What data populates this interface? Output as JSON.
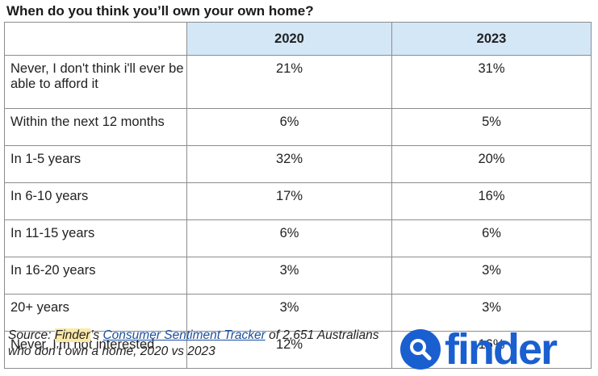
{
  "title": "When do you think you’ll own your own home?",
  "chart_data": {
    "type": "table",
    "title": "When do you think you’ll own your own home?",
    "columns": [
      "",
      "2020",
      "2023"
    ],
    "rows": [
      {
        "label": "Never, I don't think i'll ever be able to afford it",
        "values": [
          "21%",
          "31%"
        ]
      },
      {
        "label": "Within the next 12 months",
        "values": [
          "6%",
          "5%"
        ]
      },
      {
        "label": "In 1-5 years",
        "values": [
          "32%",
          "20%"
        ]
      },
      {
        "label": "In 6-10 years",
        "values": [
          "17%",
          "16%"
        ]
      },
      {
        "label": "In 11-15 years",
        "values": [
          "6%",
          "6%"
        ]
      },
      {
        "label": "In 16-20 years",
        "values": [
          "3%",
          "3%"
        ]
      },
      {
        "label": "20+ years",
        "values": [
          "3%",
          "3%"
        ]
      },
      {
        "label": "Never, I'm not interested",
        "values": [
          "12%",
          "16%"
        ]
      }
    ]
  },
  "source": {
    "prefix": "Source: ",
    "brand": "Finder",
    "middle": "’s ",
    "link": "Consumer Sentiment Tracker",
    "suffix": " of 2,651 Australians who don’t own a home, 2020 vs 2023"
  },
  "logo": {
    "word": "finder",
    "icon": "magnifier-icon",
    "color": "#1a5fd0"
  },
  "colors": {
    "header_bg": "#d4e7f7",
    "border": "#8c8c8c",
    "highlight": "#fbe9a6"
  }
}
